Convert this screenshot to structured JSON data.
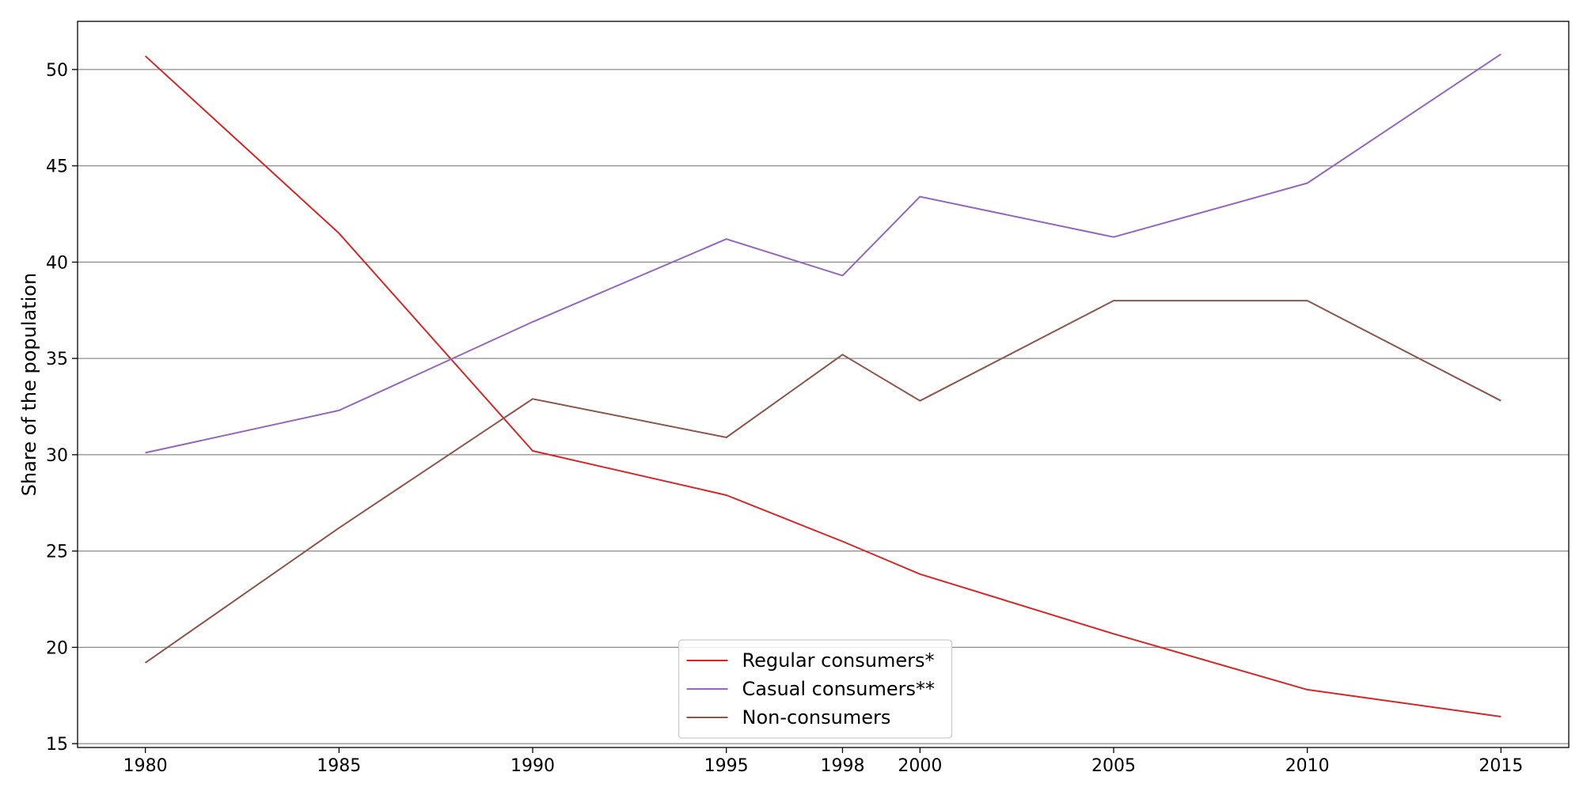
{
  "chart_data": {
    "type": "line",
    "title": "",
    "xlabel": "",
    "ylabel": "Share of the population",
    "x": [
      1980,
      1985,
      1990,
      1995,
      1998,
      2000,
      2005,
      2010,
      2015
    ],
    "x_ticks": [
      1980,
      1985,
      1990,
      1995,
      1998,
      2000,
      2005,
      2010,
      2015
    ],
    "y_ticks": [
      15,
      20,
      25,
      30,
      35,
      40,
      45,
      50
    ],
    "xlim": [
      1978.25,
      2016.75
    ],
    "ylim": [
      14.8,
      52.5
    ],
    "grid": "horizontal",
    "legend_position": "bottom-center",
    "series": [
      {
        "name": "Regular consumers*",
        "color": "#d62728",
        "values": [
          50.7,
          41.5,
          30.2,
          27.9,
          25.5,
          23.8,
          20.7,
          17.8,
          16.4
        ]
      },
      {
        "name": "Casual consumers**",
        "color": "#9467bd",
        "values": [
          30.1,
          32.3,
          36.9,
          41.2,
          39.3,
          43.4,
          41.3,
          44.1,
          50.8
        ]
      },
      {
        "name": "Non-consumers",
        "color": "#8c564b",
        "values": [
          19.2,
          26.2,
          32.9,
          30.9,
          35.2,
          32.8,
          38.0,
          38.0,
          32.8
        ]
      }
    ]
  }
}
